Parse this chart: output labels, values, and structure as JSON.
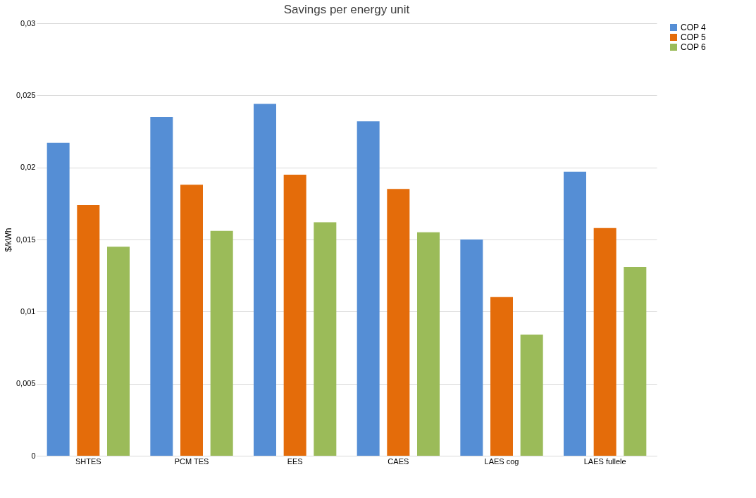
{
  "chart_data": {
    "type": "bar",
    "title": "Savings per energy unit",
    "ylabel": "$/kWh",
    "categories": [
      "SHTES",
      "PCM TES",
      "EES",
      "CAES",
      "LAES cog",
      "LAES fullele"
    ],
    "series": [
      {
        "name": "COP 4",
        "color": "#558ed5",
        "values": [
          0.0217,
          0.0235,
          0.0244,
          0.0232,
          0.015,
          0.0197
        ]
      },
      {
        "name": "COP 5",
        "color": "#e46c0a",
        "values": [
          0.0174,
          0.0188,
          0.0195,
          0.0185,
          0.011,
          0.0158
        ]
      },
      {
        "name": "COP 6",
        "color": "#9bbb59",
        "values": [
          0.0145,
          0.0156,
          0.0162,
          0.0155,
          0.0084,
          0.0131
        ]
      }
    ],
    "ylim": [
      0,
      0.03
    ],
    "yticks": [
      0,
      {
        "value": 0.005,
        "label": "0,005"
      },
      {
        "value": 0.01,
        "label": "0,01"
      },
      {
        "value": 0.015,
        "label": "0,015"
      },
      {
        "value": 0.02,
        "label": "0,02"
      },
      {
        "value": 0.025,
        "label": "0,025"
      },
      {
        "value": 0.03,
        "label": "0,03"
      }
    ],
    "grid": "y",
    "legend": "right"
  }
}
